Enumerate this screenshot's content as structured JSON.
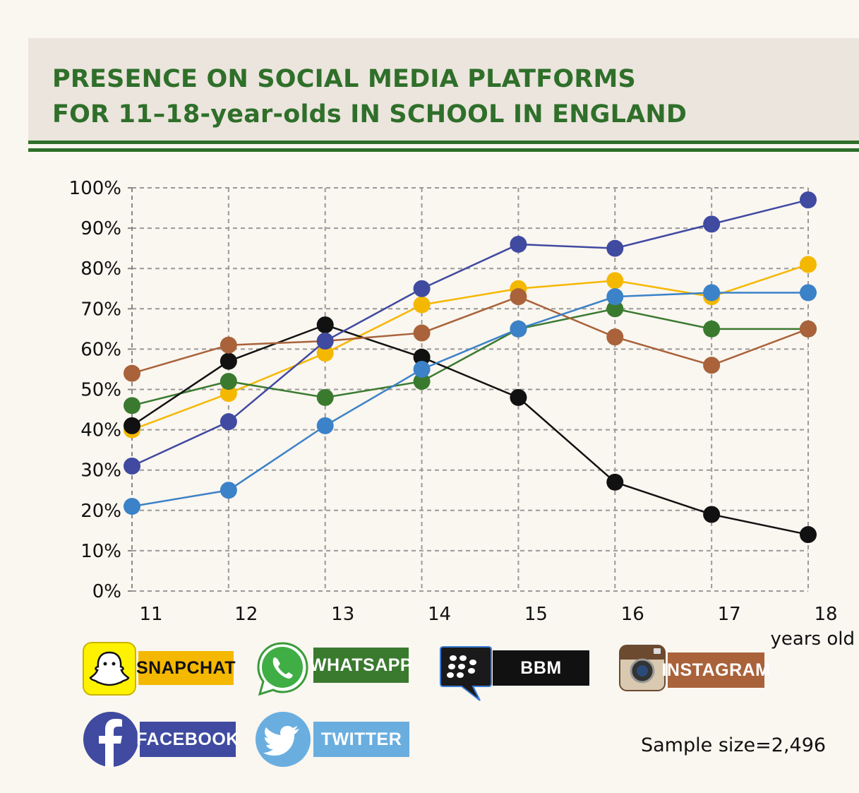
{
  "header": {
    "title_line1": "PRESENCE ON SOCIAL MEDIA PLATFORMS",
    "title_line2": "FOR 11–18-year-olds IN SCHOOL IN ENGLAND"
  },
  "chart_data": {
    "type": "line",
    "title": "PRESENCE ON SOCIAL MEDIA PLATFORMS FOR 11–18-year-olds IN SCHOOL IN ENGLAND",
    "x": [
      11,
      12,
      13,
      14,
      15,
      16,
      17,
      18
    ],
    "x_tick_labels": [
      "11",
      "12",
      "13",
      "14",
      "15",
      "16",
      "17",
      "18"
    ],
    "xlabel": "years old",
    "ylabel": "",
    "ylim": [
      0,
      100
    ],
    "y_tick_labels": [
      "0%",
      "10%",
      "20%",
      "30%",
      "40%",
      "50%",
      "60%",
      "70%",
      "80%",
      "90%",
      "100%"
    ],
    "grid": true,
    "series": [
      {
        "name": "SNAPCHAT",
        "color": "#f5b800",
        "values": [
          40,
          49,
          59,
          71,
          75,
          77,
          73,
          81
        ]
      },
      {
        "name": "WHATSAPP",
        "color": "#3a7a2f",
        "values": [
          46,
          52,
          48,
          52,
          65,
          70,
          65,
          65
        ]
      },
      {
        "name": "BBM",
        "color": "#111111",
        "values": [
          41,
          57,
          66,
          58,
          48,
          27,
          19,
          14
        ]
      },
      {
        "name": "INSTAGRAM",
        "color": "#a9623a",
        "values": [
          54,
          61,
          62,
          64,
          73,
          63,
          56,
          65
        ]
      },
      {
        "name": "FACEBOOK",
        "color": "#3f4aa0",
        "values": [
          31,
          42,
          62,
          75,
          86,
          85,
          91,
          97
        ]
      },
      {
        "name": "TWITTER",
        "color": "#3b82c8",
        "values": [
          21,
          25,
          41,
          55,
          65,
          73,
          74,
          74
        ]
      }
    ]
  },
  "legend": {
    "items": [
      {
        "label": "SNAPCHAT",
        "icon": "snapchat-ghost-icon",
        "bg": "#f5b800",
        "fg": "#111111"
      },
      {
        "label": "WHATSAPP",
        "icon": "whatsapp-phone-icon",
        "bg": "#3a7a2f",
        "fg": "#ffffff"
      },
      {
        "label": "BBM",
        "icon": "blackberry-messenger-icon",
        "bg": "#111111",
        "fg": "#ffffff"
      },
      {
        "label": "INSTAGRAM",
        "icon": "instagram-camera-icon",
        "bg": "#a9623a",
        "fg": "#ffffff"
      },
      {
        "label": "FACEBOOK",
        "icon": "facebook-f-icon",
        "bg": "#3f4aa0",
        "fg": "#ffffff"
      },
      {
        "label": "TWITTER",
        "icon": "twitter-bird-icon",
        "bg": "#6aaee0",
        "fg": "#ffffff"
      }
    ]
  },
  "footer": {
    "sample_size": "Sample size=2,496"
  }
}
